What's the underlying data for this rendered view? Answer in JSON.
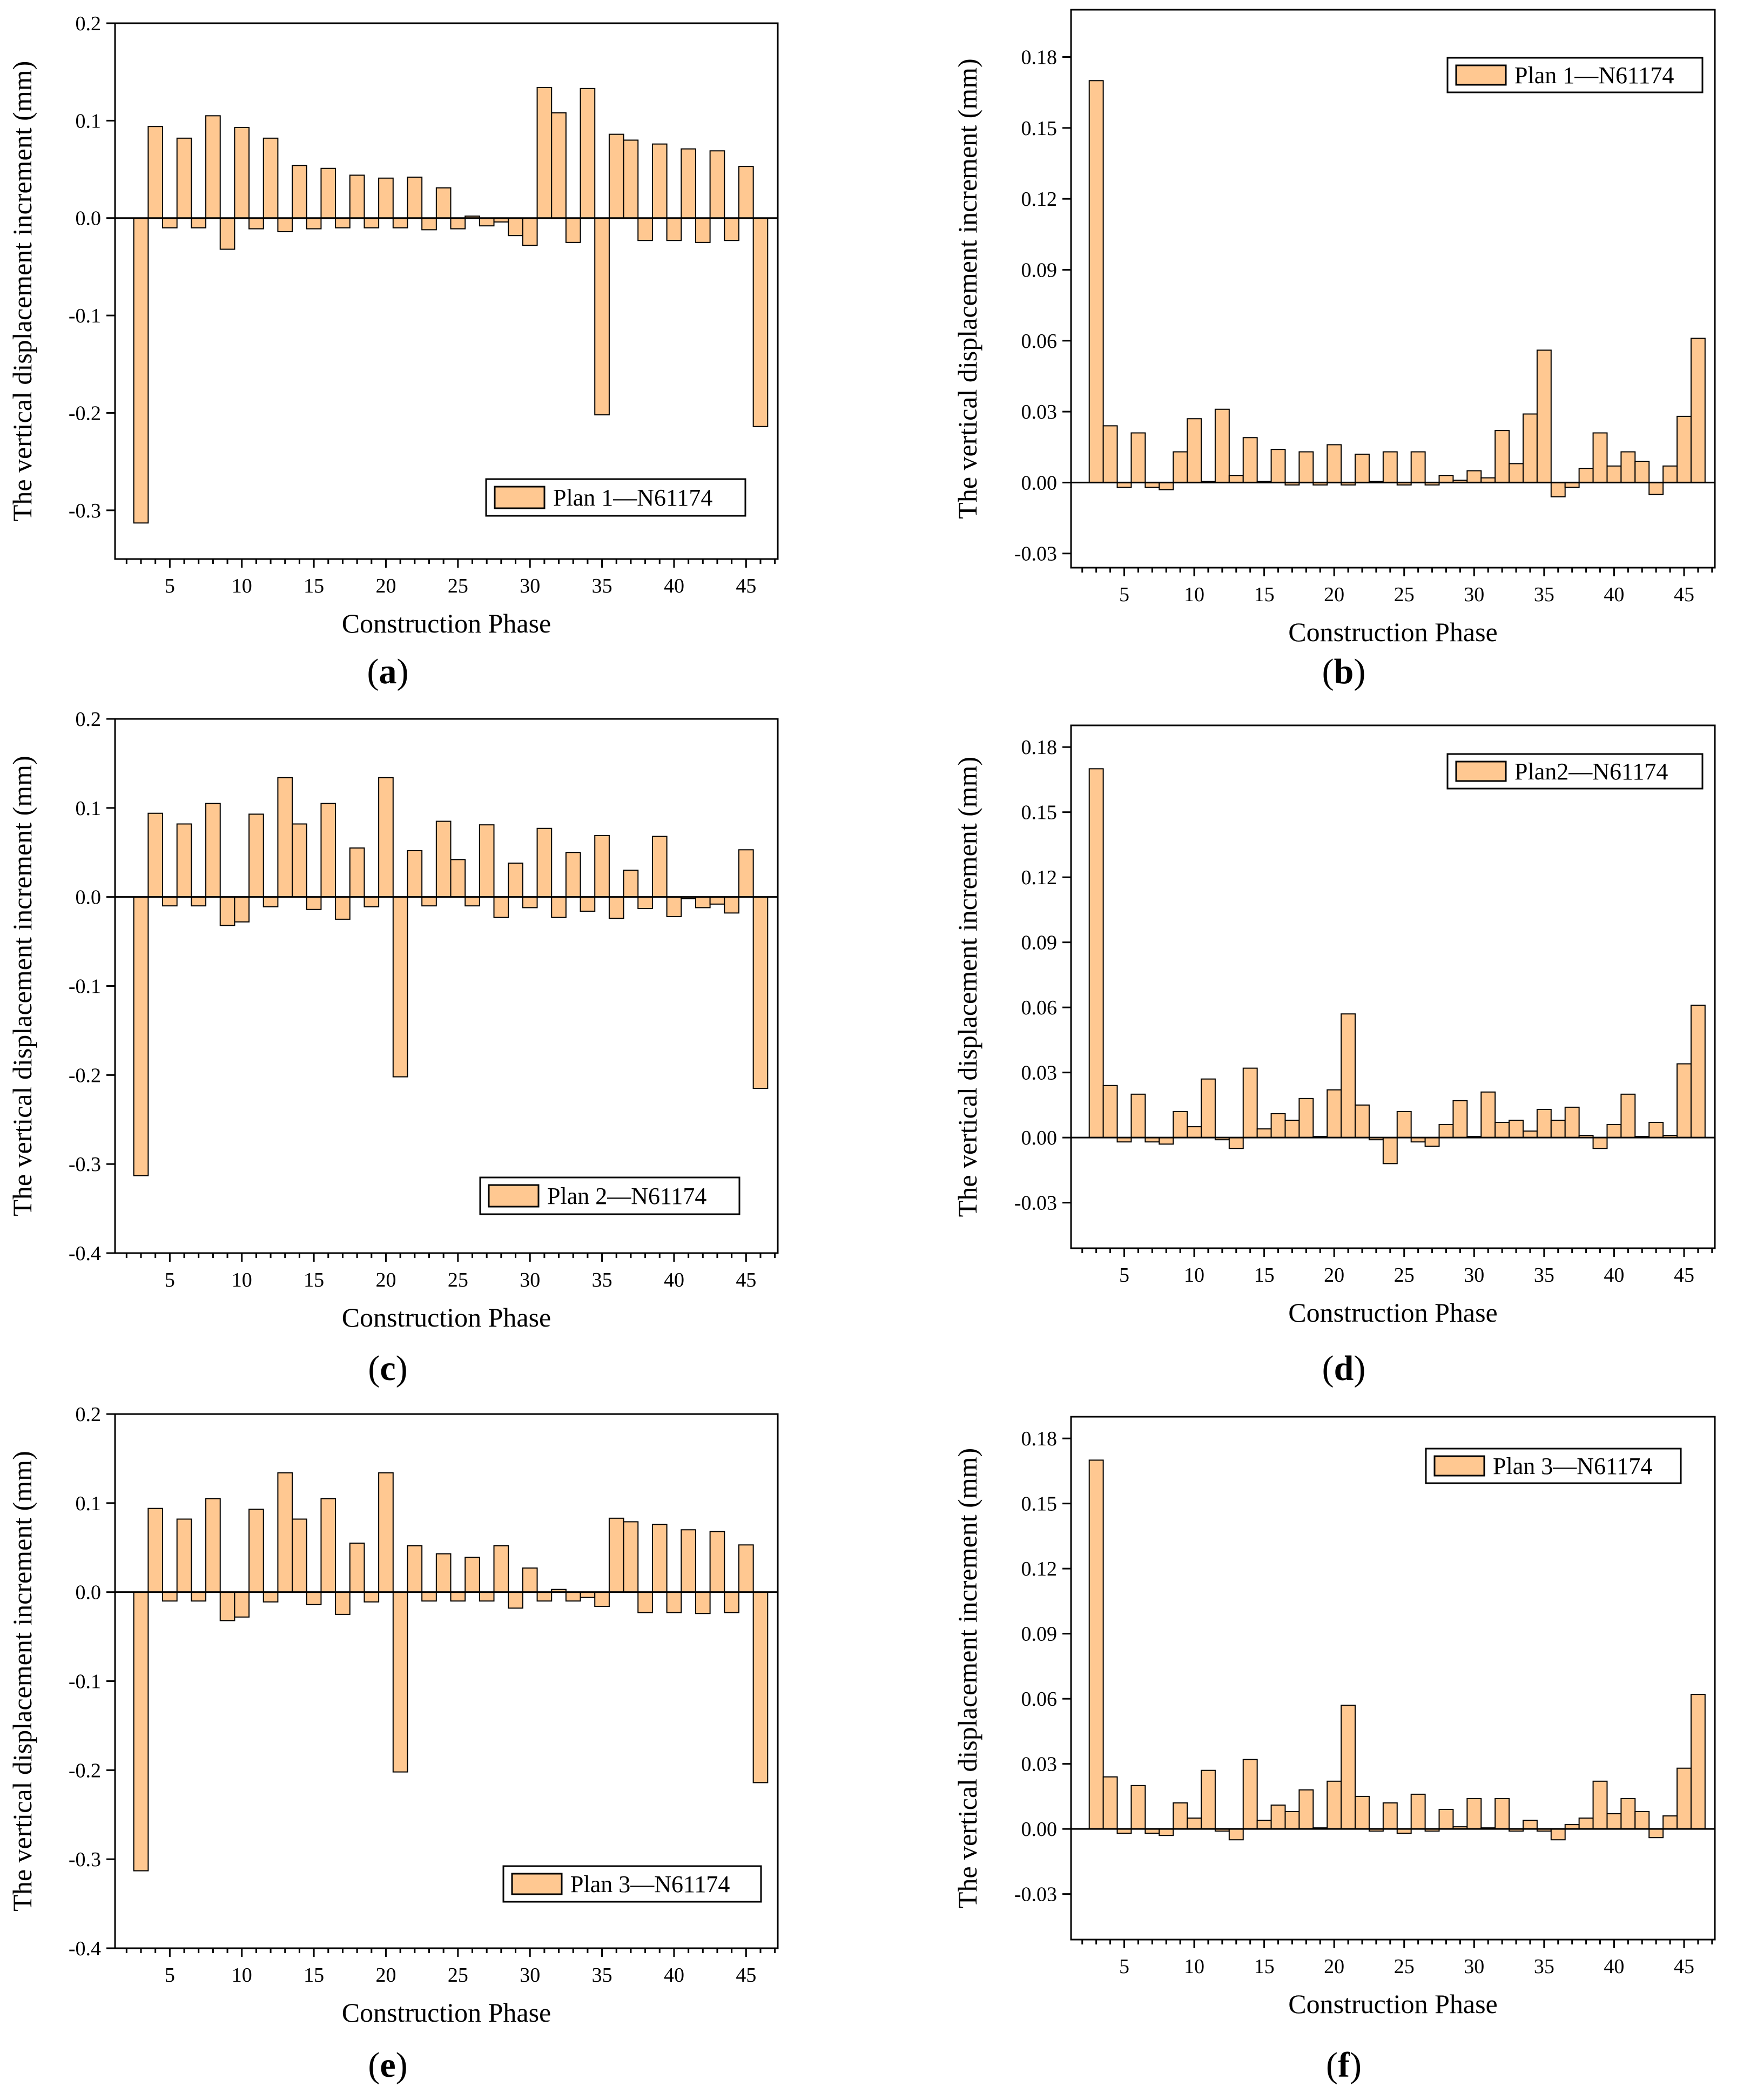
{
  "figure": {
    "bar_fill": "#FFC891",
    "bar_stroke": "#000000",
    "axis_color": "#000000"
  },
  "chart_data": [
    {
      "id": "a",
      "caption": "a",
      "type": "bar",
      "xlabel": "Construction  Phase",
      "ylabel": "The vertical displacement increment (mm)",
      "legend": "Plan 1—N61174",
      "xlim": [
        1.2,
        47.2
      ],
      "xticks": [
        5,
        10,
        15,
        20,
        25,
        30,
        35,
        40,
        45
      ],
      "ylim": [
        -0.35,
        0.2
      ],
      "yticks": [
        0.2,
        0.1,
        0.0,
        -0.1,
        -0.2,
        -0.3
      ],
      "ytick_labels": [
        "0.2",
        "0.1",
        "0.0",
        "-0.1",
        "-0.2",
        "-0.3"
      ],
      "x": [
        3,
        4,
        5,
        6,
        7,
        8,
        9,
        10,
        11,
        12,
        13,
        14,
        15,
        16,
        17,
        18,
        19,
        20,
        21,
        22,
        23,
        24,
        25,
        26,
        27,
        28,
        29,
        30,
        31,
        32,
        33,
        34,
        35,
        36,
        37,
        38,
        39,
        40,
        41,
        42,
        43,
        44,
        45,
        46
      ],
      "values": [
        -0.313,
        0.094,
        -0.01,
        0.082,
        -0.01,
        0.105,
        -0.032,
        0.093,
        -0.011,
        0.082,
        -0.014,
        0.054,
        -0.011,
        0.051,
        -0.01,
        0.044,
        -0.01,
        0.041,
        -0.01,
        0.042,
        -0.012,
        0.031,
        -0.011,
        0.002,
        -0.008,
        -0.004,
        -0.018,
        -0.028,
        0.134,
        0.108,
        -0.025,
        0.133,
        -0.202,
        0.086,
        0.08,
        -0.023,
        0.076,
        -0.023,
        0.071,
        -0.025,
        0.069,
        -0.023,
        0.053,
        -0.214
      ]
    },
    {
      "id": "b",
      "caption": "b",
      "type": "bar",
      "xlabel": "Construction  Phase",
      "ylabel": "The vertical displacement increment (mm)",
      "legend": "Plan 1—N61174",
      "xlim": [
        1.2,
        47.2
      ],
      "xticks": [
        5,
        10,
        15,
        20,
        25,
        30,
        35,
        40,
        45
      ],
      "ylim": [
        -0.036,
        0.2
      ],
      "yticks": [
        0.18,
        0.15,
        0.12,
        0.09,
        0.06,
        0.03,
        0.0,
        -0.03
      ],
      "ytick_labels": [
        "0.18",
        "0.15",
        "0.12",
        "0.09",
        "0.06",
        "0.03",
        "0.00",
        "-0.03"
      ],
      "x": [
        3,
        4,
        5,
        6,
        7,
        8,
        9,
        10,
        11,
        12,
        13,
        14,
        15,
        16,
        17,
        18,
        19,
        20,
        21,
        22,
        23,
        24,
        25,
        26,
        27,
        28,
        29,
        30,
        31,
        32,
        33,
        34,
        35,
        36,
        37,
        38,
        39,
        40,
        41,
        42,
        43,
        44,
        45,
        46
      ],
      "values": [
        0.17,
        0.024,
        -0.002,
        0.021,
        -0.002,
        -0.003,
        0.013,
        0.027,
        0.0005,
        0.031,
        0.003,
        0.019,
        0.0005,
        0.014,
        -0.001,
        0.013,
        -0.001,
        0.016,
        -0.001,
        0.012,
        0.0005,
        0.013,
        -0.001,
        0.013,
        -0.001,
        0.003,
        0.001,
        0.005,
        0.002,
        0.022,
        0.008,
        0.029,
        0.056,
        -0.006,
        -0.002,
        0.006,
        0.021,
        0.007,
        0.013,
        0.009,
        -0.005,
        0.007,
        0.028,
        0.061
      ]
    },
    {
      "id": "c",
      "caption": "c",
      "type": "bar",
      "xlabel": "Construction  Phase",
      "ylabel": "The vertical displacement increment (mm)",
      "legend": "Plan 2—N61174",
      "xlim": [
        1.2,
        47.2
      ],
      "xticks": [
        5,
        10,
        15,
        20,
        25,
        30,
        35,
        40,
        45
      ],
      "ylim": [
        -0.4,
        0.2
      ],
      "yticks": [
        0.2,
        0.1,
        0.0,
        -0.1,
        -0.2,
        -0.3,
        -0.4
      ],
      "ytick_labels": [
        "0.2",
        "0.1",
        "0.0",
        "-0.1",
        "-0.2",
        "-0.3",
        "-0.4"
      ],
      "x": [
        3,
        4,
        5,
        6,
        7,
        8,
        9,
        10,
        11,
        12,
        13,
        14,
        15,
        16,
        17,
        18,
        19,
        20,
        21,
        22,
        23,
        24,
        25,
        26,
        27,
        28,
        29,
        30,
        31,
        32,
        33,
        34,
        35,
        36,
        37,
        38,
        39,
        40,
        41,
        42,
        43,
        44,
        45,
        46
      ],
      "values": [
        -0.313,
        0.094,
        -0.01,
        0.082,
        -0.01,
        0.105,
        -0.032,
        -0.028,
        0.093,
        -0.011,
        0.134,
        0.082,
        -0.014,
        0.105,
        -0.025,
        0.055,
        -0.011,
        0.134,
        -0.202,
        0.052,
        -0.01,
        0.085,
        0.042,
        -0.01,
        0.081,
        -0.023,
        0.038,
        -0.012,
        0.077,
        -0.023,
        0.05,
        -0.016,
        0.069,
        -0.024,
        0.03,
        -0.013,
        0.068,
        -0.022,
        -0.002,
        -0.012,
        -0.008,
        -0.018,
        0.053,
        -0.215
      ]
    },
    {
      "id": "d",
      "caption": "d",
      "type": "bar",
      "xlabel": "Construction  Phase",
      "ylabel": "The vertical displacement increment (mm)",
      "legend": "Plan2—N61174",
      "xlim": [
        1.2,
        47.2
      ],
      "xticks": [
        5,
        10,
        15,
        20,
        25,
        30,
        35,
        40,
        45
      ],
      "ylim": [
        -0.051,
        0.19
      ],
      "yticks": [
        0.18,
        0.15,
        0.12,
        0.09,
        0.06,
        0.03,
        0.0,
        -0.03
      ],
      "ytick_labels": [
        "0.18",
        "0.15",
        "0.12",
        "0.09",
        "0.06",
        "0.03",
        "0.00",
        "-0.03"
      ],
      "x": [
        3,
        4,
        5,
        6,
        7,
        8,
        9,
        10,
        11,
        12,
        13,
        14,
        15,
        16,
        17,
        18,
        19,
        20,
        21,
        22,
        23,
        24,
        25,
        26,
        27,
        28,
        29,
        30,
        31,
        32,
        33,
        34,
        35,
        36,
        37,
        38,
        39,
        40,
        41,
        42,
        43,
        44,
        45,
        46
      ],
      "values": [
        0.17,
        0.024,
        -0.002,
        0.02,
        -0.002,
        -0.003,
        0.012,
        0.005,
        0.027,
        -0.001,
        -0.005,
        0.032,
        0.004,
        0.011,
        0.008,
        0.018,
        0.0005,
        0.022,
        0.057,
        0.015,
        -0.001,
        -0.012,
        0.012,
        -0.002,
        -0.004,
        0.006,
        0.017,
        0.0005,
        0.021,
        0.007,
        0.008,
        0.003,
        0.013,
        0.008,
        0.014,
        0.001,
        -0.005,
        0.006,
        0.02,
        0.0005,
        0.007,
        0.001,
        0.034,
        0.061
      ]
    },
    {
      "id": "e",
      "caption": "e",
      "type": "bar",
      "xlabel": "Construction  Phase",
      "ylabel": "The vertical displacement increment (mm)",
      "legend": "Plan 3—N61174",
      "xlim": [
        1.2,
        47.2
      ],
      "xticks": [
        5,
        10,
        15,
        20,
        25,
        30,
        35,
        40,
        45
      ],
      "ylim": [
        -0.4,
        0.2
      ],
      "yticks": [
        0.2,
        0.1,
        0.0,
        -0.1,
        -0.2,
        -0.3,
        -0.4
      ],
      "ytick_labels": [
        "0.2",
        "0.1",
        "0.0",
        "-0.1",
        "-0.2",
        "-0.3",
        "-0.4"
      ],
      "x": [
        3,
        4,
        5,
        6,
        7,
        8,
        9,
        10,
        11,
        12,
        13,
        14,
        15,
        16,
        17,
        18,
        19,
        20,
        21,
        22,
        23,
        24,
        25,
        26,
        27,
        28,
        29,
        30,
        31,
        32,
        33,
        34,
        35,
        36,
        37,
        38,
        39,
        40,
        41,
        42,
        43,
        44,
        45,
        46
      ],
      "values": [
        -0.313,
        0.094,
        -0.01,
        0.082,
        -0.01,
        0.105,
        -0.032,
        -0.028,
        0.093,
        -0.011,
        0.134,
        0.082,
        -0.014,
        0.105,
        -0.025,
        0.055,
        -0.011,
        0.134,
        -0.202,
        0.052,
        -0.01,
        0.043,
        -0.01,
        0.039,
        -0.01,
        0.052,
        -0.018,
        0.027,
        -0.01,
        0.003,
        -0.01,
        -0.006,
        -0.016,
        0.083,
        0.079,
        -0.023,
        0.076,
        -0.023,
        0.07,
        -0.024,
        0.068,
        -0.023,
        0.053,
        -0.214
      ]
    },
    {
      "id": "f",
      "caption": "f",
      "type": "bar",
      "xlabel": "Construction  Phase",
      "ylabel": "The vertical displacement increment (mm)",
      "legend": "Plan 3—N61174",
      "xlim": [
        1.2,
        47.2
      ],
      "xticks": [
        5,
        10,
        15,
        20,
        25,
        30,
        35,
        40,
        45
      ],
      "ylim": [
        -0.051,
        0.19
      ],
      "yticks": [
        0.18,
        0.15,
        0.12,
        0.09,
        0.06,
        0.03,
        0.0,
        -0.03
      ],
      "ytick_labels": [
        "0.18",
        "0.15",
        "0.12",
        "0.09",
        "0.06",
        "0.03",
        "0.00",
        "-0.03"
      ],
      "x": [
        3,
        4,
        5,
        6,
        7,
        8,
        9,
        10,
        11,
        12,
        13,
        14,
        15,
        16,
        17,
        18,
        19,
        20,
        21,
        22,
        23,
        24,
        25,
        26,
        27,
        28,
        29,
        30,
        31,
        32,
        33,
        34,
        35,
        36,
        37,
        38,
        39,
        40,
        41,
        42,
        43,
        44,
        45,
        46
      ],
      "values": [
        0.17,
        0.024,
        -0.002,
        0.02,
        -0.002,
        -0.003,
        0.012,
        0.005,
        0.027,
        -0.001,
        -0.005,
        0.032,
        0.004,
        0.011,
        0.008,
        0.018,
        0.0005,
        0.022,
        0.057,
        0.015,
        -0.001,
        0.012,
        -0.002,
        0.016,
        -0.001,
        0.009,
        0.001,
        0.014,
        0.0005,
        0.014,
        -0.001,
        0.004,
        -0.001,
        -0.005,
        0.002,
        0.005,
        0.022,
        0.007,
        0.014,
        0.008,
        -0.004,
        0.006,
        0.028,
        0.062
      ]
    }
  ]
}
